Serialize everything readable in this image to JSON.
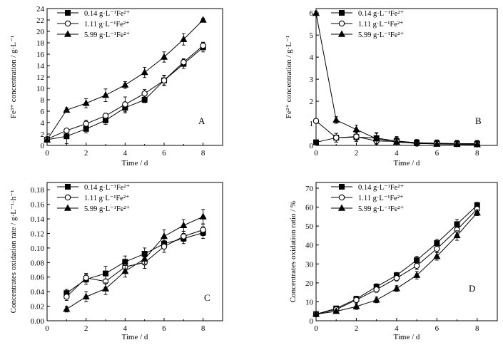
{
  "chart_data": [
    {
      "type": "line",
      "panel_label": "A",
      "xlabel": "Time / d",
      "ylabel": "Fe³⁺ concentration / g·L⁻¹",
      "xlim": [
        0,
        9
      ],
      "ylim": [
        0,
        24
      ],
      "xticks": [
        0,
        2,
        4,
        6,
        8
      ],
      "yticks": [
        0,
        2,
        4,
        6,
        8,
        10,
        12,
        14,
        16,
        18,
        20,
        22,
        24
      ],
      "legend_position": "top-left",
      "series": [
        {
          "name": "0.14 g·L⁻¹Fe²⁺",
          "marker": "square",
          "x": [
            0,
            1,
            2,
            3,
            4,
            5,
            6,
            7,
            8
          ],
          "y": [
            1.0,
            1.6,
            2.9,
            4.4,
            6.6,
            8.0,
            11.4,
            14.3,
            17.2
          ],
          "err": [
            0.3,
            1.3,
            0.7,
            0.7,
            0.9,
            0.5,
            0.8,
            0.8,
            0.8
          ]
        },
        {
          "name": "1.11 g·L⁻¹Fe²⁺",
          "marker": "circle",
          "x": [
            0,
            1,
            2,
            3,
            4,
            5,
            6,
            7,
            8
          ],
          "y": [
            1.1,
            2.6,
            3.8,
            5.2,
            7.2,
            9.1,
            11.4,
            14.6,
            17.5
          ],
          "err": [
            0.3,
            0.3,
            0.6,
            0.4,
            1.3,
            0.7,
            0.9,
            0.6,
            0.6
          ]
        },
        {
          "name": "5.99 g·L⁻¹Fe²⁺",
          "marker": "triangle",
          "x": [
            0,
            1,
            2,
            3,
            4,
            5,
            6,
            7,
            8
          ],
          "y": [
            1.0,
            6.2,
            7.4,
            8.8,
            10.6,
            12.8,
            15.5,
            18.6,
            22.0
          ],
          "err": [
            0.2,
            0.4,
            0.8,
            1.1,
            0.6,
            0.9,
            0.9,
            1.0,
            0.3
          ]
        }
      ]
    },
    {
      "type": "line",
      "panel_label": "B",
      "xlabel": "Time / d",
      "ylabel": "Fe²⁺ concentration / g·L⁻¹",
      "xlim": [
        0,
        9
      ],
      "ylim": [
        0,
        6.2
      ],
      "xticks": [
        0,
        2,
        4,
        6,
        8
      ],
      "yticks": [
        0,
        1,
        2,
        3,
        4,
        5,
        6
      ],
      "legend_position": "top-right",
      "series": [
        {
          "name": "0.14 g·L⁻¹Fe²⁺",
          "marker": "square",
          "x": [
            0,
            1,
            2,
            3,
            4,
            5,
            6,
            7,
            8
          ],
          "y": [
            0.14,
            0.35,
            0.38,
            0.33,
            0.2,
            0.12,
            0.1,
            0.08,
            0.08
          ],
          "err": [
            0.05,
            0.2,
            0.2,
            0.25,
            0.2,
            0.15,
            0.15,
            0.15,
            0.15
          ]
        },
        {
          "name": "1.11 g·L⁻¹Fe²⁺",
          "marker": "circle",
          "x": [
            0,
            1,
            2,
            3,
            4,
            5,
            6,
            7,
            8
          ],
          "y": [
            1.11,
            0.35,
            0.4,
            0.2,
            0.18,
            0.08,
            0.08,
            0.06,
            0.05
          ],
          "err": [
            0.1,
            0.2,
            0.2,
            0.2,
            0.2,
            0.15,
            0.15,
            0.15,
            0.15
          ]
        },
        {
          "name": "5.99 g·L⁻¹Fe²⁺",
          "marker": "triangle",
          "x": [
            0,
            1,
            2,
            3,
            4,
            5,
            6,
            7,
            8
          ],
          "y": [
            5.99,
            1.15,
            0.72,
            0.3,
            0.15,
            0.1,
            0.06,
            0.05,
            0.04
          ],
          "err": [
            0.1,
            0.15,
            0.2,
            0.25,
            0.2,
            0.15,
            0.15,
            0.15,
            0.15
          ]
        }
      ]
    },
    {
      "type": "line",
      "panel_label": "C",
      "xlabel": "Time / d",
      "ylabel": "Concentrates oxidation rate / g·L⁻¹·h⁻¹",
      "xlim": [
        0,
        9
      ],
      "ylim": [
        0,
        0.19
      ],
      "xticks": [
        0,
        2,
        4,
        6,
        8
      ],
      "yticks": [
        0,
        0.02,
        0.04,
        0.06,
        0.08,
        0.1,
        0.12,
        0.14,
        0.16,
        0.18
      ],
      "ytick_labels": [
        "0.00",
        "0.02",
        "0.04",
        "0.06",
        "0.08",
        "0.10",
        "0.12",
        "0.14",
        "0.16",
        "0.18"
      ],
      "legend_position": "top-left",
      "series": [
        {
          "name": "0.14 g·L⁻¹Fe²⁺",
          "marker": "square",
          "x": [
            1,
            2,
            3,
            4,
            5,
            6,
            7,
            8
          ],
          "y": [
            0.038,
            0.057,
            0.065,
            0.081,
            0.092,
            0.106,
            0.113,
            0.121
          ],
          "err": [
            0.005,
            0.007,
            0.01,
            0.008,
            0.008,
            0.007,
            0.007,
            0.008
          ]
        },
        {
          "name": "1.11 g·L⁻¹Fe²⁺",
          "marker": "circle",
          "x": [
            1,
            2,
            3,
            4,
            5,
            6,
            7,
            8
          ],
          "y": [
            0.033,
            0.059,
            0.054,
            0.074,
            0.08,
            0.102,
            0.116,
            0.125
          ],
          "err": [
            0.005,
            0.006,
            0.008,
            0.008,
            0.008,
            0.008,
            0.007,
            0.008
          ]
        },
        {
          "name": "5.99 g·L⁻¹Fe²⁺",
          "marker": "triangle",
          "x": [
            1,
            2,
            3,
            4,
            5,
            6,
            7,
            8
          ],
          "y": [
            0.016,
            0.033,
            0.044,
            0.068,
            0.085,
            0.116,
            0.131,
            0.143
          ],
          "err": [
            0.004,
            0.007,
            0.008,
            0.008,
            0.007,
            0.009,
            0.008,
            0.01
          ]
        }
      ]
    },
    {
      "type": "line",
      "panel_label": "D",
      "xlabel": "Time / d",
      "ylabel": "Concentrates oxidation ratio / %",
      "xlim": [
        0,
        9
      ],
      "ylim": [
        0,
        73
      ],
      "xticks": [
        0,
        2,
        4,
        6,
        8
      ],
      "yticks": [
        0,
        10,
        20,
        30,
        40,
        50,
        60,
        70
      ],
      "legend_position": "top-left",
      "series": [
        {
          "name": "0.14 g·L⁻¹Fe²⁺",
          "marker": "square",
          "x": [
            0,
            1,
            2,
            3,
            4,
            5,
            6,
            7,
            8
          ],
          "y": [
            3.5,
            6.5,
            11.5,
            18.0,
            24.0,
            32.0,
            41.0,
            51.0,
            61.0
          ],
          "err": [
            0.5,
            1.0,
            1.5,
            1.5,
            1.5,
            2.0,
            2.0,
            2.5,
            1.5
          ]
        },
        {
          "name": "1.11 g·L⁻¹Fe²⁺",
          "marker": "circle",
          "x": [
            0,
            1,
            2,
            3,
            4,
            5,
            6,
            7,
            8
          ],
          "y": [
            3.5,
            6.0,
            11.0,
            16.5,
            22.5,
            29.0,
            38.0,
            48.0,
            59.0
          ],
          "err": [
            0.5,
            1.0,
            1.5,
            1.5,
            1.5,
            2.0,
            2.0,
            2.5,
            1.5
          ]
        },
        {
          "name": "5.99 g·L⁻¹Fe²⁺",
          "marker": "triangle",
          "x": [
            0,
            1,
            2,
            3,
            4,
            5,
            6,
            7,
            8
          ],
          "y": [
            3.5,
            5.0,
            7.5,
            11.0,
            17.0,
            24.0,
            34.0,
            45.0,
            57.0
          ],
          "err": [
            0.5,
            1.0,
            1.5,
            1.5,
            1.5,
            2.0,
            2.0,
            2.5,
            1.5
          ]
        }
      ]
    }
  ]
}
